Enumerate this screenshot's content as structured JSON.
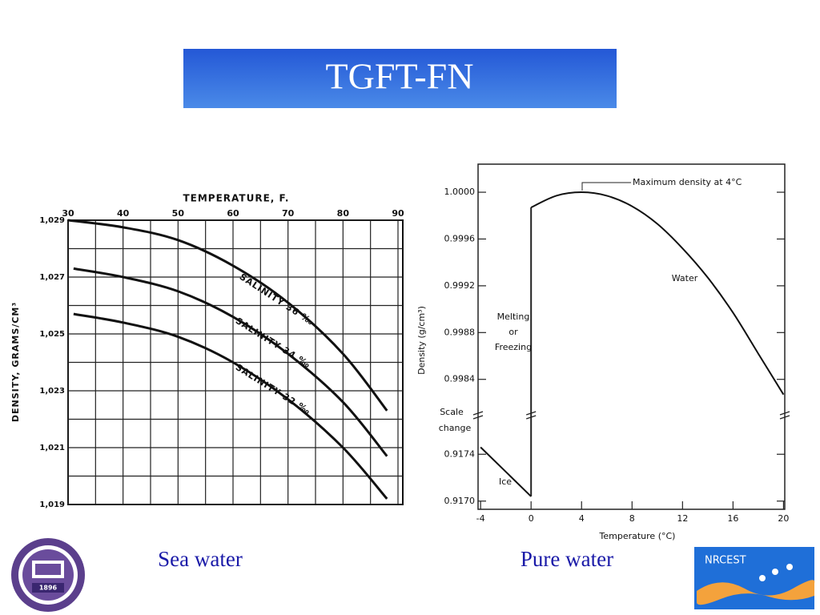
{
  "slide": {
    "title": "TGFT-FN",
    "captions": [
      "Sea water",
      "Pure water"
    ],
    "logos": {
      "left": "1896",
      "right": "NRCEST"
    }
  },
  "chart_data": [
    {
      "type": "line",
      "title": "TEMPERATURE, F.",
      "y_label": "DENSITY, GRAMS/CM³",
      "xlim": [
        30,
        90
      ],
      "ylim": [
        1.019,
        1.029
      ],
      "xticks": [
        30,
        40,
        50,
        60,
        70,
        80,
        90
      ],
      "yticks": [
        {
          "value": 1.029,
          "label": "1,029"
        },
        {
          "value": 1.027,
          "label": "1,027"
        },
        {
          "value": 1.025,
          "label": "1,025"
        },
        {
          "value": 1.023,
          "label": "1,023"
        },
        {
          "value": 1.021,
          "label": "1,021"
        },
        {
          "value": 1.019,
          "label": "1,019"
        }
      ],
      "grid": true,
      "grid_x": [
        35,
        45,
        55,
        65,
        75,
        85
      ],
      "grid_y": [
        1.02,
        1.022,
        1.024,
        1.026,
        1.028
      ],
      "series": [
        {
          "name": "SALINITY 36 ‰",
          "color": "#111111",
          "x": [
            30,
            40,
            50,
            60,
            70,
            80,
            88
          ],
          "values": [
            1.029,
            1.02875,
            1.0283,
            1.0274,
            1.0261,
            1.0243,
            1.0223
          ]
        },
        {
          "name": "SALINITY 34 ‰",
          "color": "#111111",
          "x": [
            31,
            40,
            50,
            60,
            70,
            80,
            88
          ],
          "values": [
            1.0273,
            1.027,
            1.0265,
            1.0256,
            1.0243,
            1.0226,
            1.0207
          ]
        },
        {
          "name": "SALINITY 32 ‰",
          "color": "#111111",
          "x": [
            31,
            40,
            50,
            60,
            70,
            80,
            88
          ],
          "values": [
            1.0257,
            1.0254,
            1.0249,
            1.024,
            1.0227,
            1.021,
            1.0192
          ]
        }
      ]
    },
    {
      "type": "line",
      "x_label": "Temperature (°C)",
      "y_label": "Density (g/cm³)",
      "xlim": [
        -4.2,
        20.1
      ],
      "xticks": [
        -4,
        0,
        4,
        8,
        12,
        16,
        20
      ],
      "ylim": [
        0.99809,
        1.00024
      ],
      "yticks": [
        {
          "value": 1,
          "label": "1.0000"
        },
        0.9996,
        0.9992,
        0.9988,
        0.9984
      ],
      "ylim_lower": [
        0.91693,
        0.91773
      ],
      "yticks_lower": [
        0.9174,
        {
          "value": 0.917,
          "label": "0.9170"
        }
      ],
      "axis_break": [
        "Scale",
        "change"
      ],
      "annotations": [
        "Maximum density at 4°C",
        [
          "Melting",
          "or",
          "Freezing"
        ]
      ],
      "series": [
        {
          "name": "Water",
          "color": "#111111",
          "x": [
            0,
            2,
            4,
            6,
            8,
            10,
            12,
            14,
            16,
            18,
            20
          ],
          "values": [
            0.99987,
            0.99997,
            1.0,
            0.99997,
            0.99988,
            0.99973,
            0.99952,
            0.99927,
            0.99897,
            0.99862,
            0.99827
          ]
        },
        {
          "name": "Ice",
          "color": "#111111",
          "axis": "lower",
          "x": [
            -4,
            0
          ],
          "values": [
            0.91746,
            0.91704
          ]
        }
      ]
    }
  ]
}
